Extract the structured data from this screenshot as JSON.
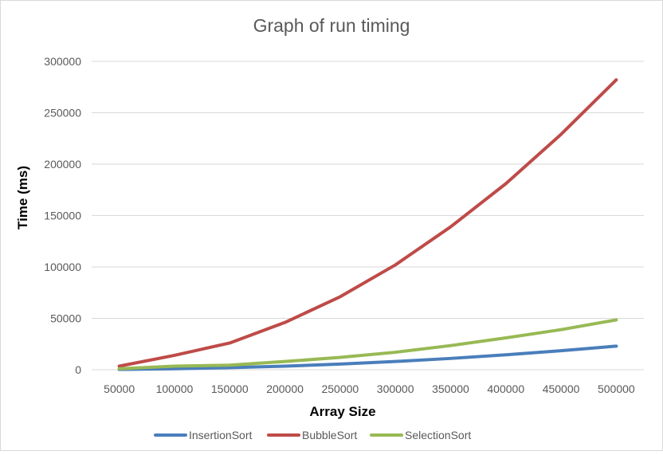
{
  "chart_data": {
    "type": "line",
    "title": "Graph of run timing",
    "xlabel": "Array Size",
    "ylabel": "Time (ms)",
    "categories": [
      "50000",
      "100000",
      "150000",
      "200000",
      "250000",
      "300000",
      "350000",
      "400000",
      "450000",
      "500000"
    ],
    "ylim": [
      0,
      300000
    ],
    "yticks": [
      "0",
      "50000",
      "100000",
      "150000",
      "200000",
      "250000",
      "300000"
    ],
    "grid": true,
    "legend_position": "bottom",
    "series": [
      {
        "name": "InsertionSort",
        "color": "#4a7ebb",
        "values": [
          300,
          1000,
          2000,
          3500,
          5500,
          8000,
          11000,
          14500,
          18500,
          23000
        ]
      },
      {
        "name": "BubbleSort",
        "color": "#be4b48",
        "values": [
          3500,
          14000,
          26000,
          46000,
          71000,
          102000,
          139000,
          181000,
          229000,
          282000
        ]
      },
      {
        "name": "SelectionSort",
        "color": "#98b954",
        "values": [
          1000,
          3500,
          4500,
          8000,
          12000,
          17000,
          23500,
          31000,
          39000,
          48500
        ]
      }
    ]
  }
}
